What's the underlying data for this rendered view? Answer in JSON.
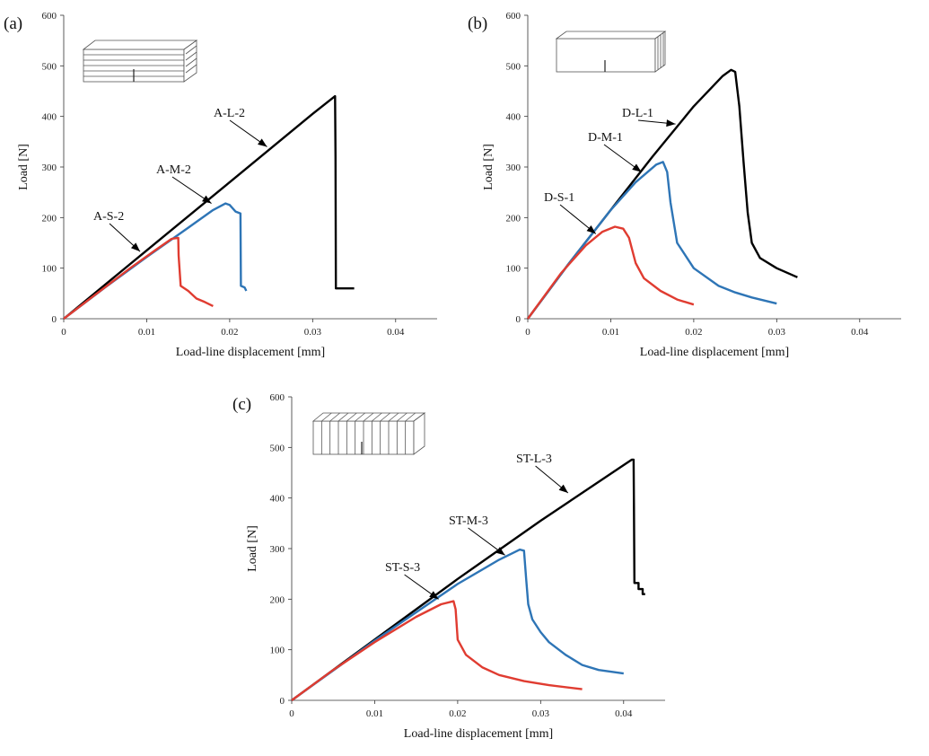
{
  "chart_data": [
    {
      "type": "line",
      "panel_label": "(a)",
      "xlabel": "Load-line displacement [mm]",
      "ylabel": "Load [N]",
      "xlim": [
        0,
        0.045
      ],
      "ylim": [
        0,
        600
      ],
      "xticks": [
        "0",
        "0.01",
        "0.02",
        "0.03",
        "0.04"
      ],
      "yticks": [
        "0",
        "100",
        "200",
        "300",
        "400",
        "500",
        "600"
      ],
      "inset": "specimen-a",
      "series": [
        {
          "name": "A-L-2",
          "color": "#000000",
          "points": [
            [
              0,
              0
            ],
            [
              0.01,
              135
            ],
            [
              0.02,
              270
            ],
            [
              0.03,
              405
            ],
            [
              0.0327,
              440
            ],
            [
              0.03275,
              320
            ],
            [
              0.0328,
              60
            ],
            [
              0.035,
              60
            ]
          ]
        },
        {
          "name": "A-M-2",
          "color": "#2e75b6",
          "points": [
            [
              0,
              0
            ],
            [
              0.005,
              62
            ],
            [
              0.01,
              122
            ],
            [
              0.015,
              180
            ],
            [
              0.018,
              215
            ],
            [
              0.0195,
              228
            ],
            [
              0.02,
              225
            ],
            [
              0.0207,
              212
            ],
            [
              0.0213,
              208
            ],
            [
              0.02135,
              65
            ],
            [
              0.0218,
              62
            ],
            [
              0.022,
              55
            ]
          ]
        },
        {
          "name": "A-S-2",
          "color": "#e03c31",
          "points": [
            [
              0,
              0
            ],
            [
              0.004,
              50
            ],
            [
              0.008,
              100
            ],
            [
              0.011,
              135
            ],
            [
              0.013,
              158
            ],
            [
              0.0138,
              160
            ],
            [
              0.01385,
              125
            ],
            [
              0.0141,
              65
            ],
            [
              0.015,
              55
            ],
            [
              0.016,
              40
            ],
            [
              0.017,
              33
            ],
            [
              0.018,
              25
            ]
          ]
        }
      ],
      "annotations": [
        {
          "text": "A-L-2",
          "target": [
            0.0245,
            340
          ]
        },
        {
          "text": "A-M-2",
          "target": [
            0.0178,
            228
          ]
        },
        {
          "text": "A-S-2",
          "target": [
            0.0092,
            133
          ]
        }
      ]
    },
    {
      "type": "line",
      "panel_label": "(b)",
      "xlabel": "Load-line displacement [mm]",
      "ylabel": "Load [N]",
      "xlim": [
        0,
        0.045
      ],
      "ylim": [
        0,
        600
      ],
      "xticks": [
        "0",
        "0.01",
        "0.02",
        "0.03",
        "0.04"
      ],
      "yticks": [
        "0",
        "100",
        "200",
        "300",
        "400",
        "500",
        "600"
      ],
      "inset": "specimen-b",
      "series": [
        {
          "name": "D-L-1",
          "color": "#000000",
          "points": [
            [
              0,
              0
            ],
            [
              0.005,
              110
            ],
            [
              0.01,
              215
            ],
            [
              0.015,
              320
            ],
            [
              0.02,
              420
            ],
            [
              0.0235,
              480
            ],
            [
              0.0245,
              492
            ],
            [
              0.025,
              488
            ],
            [
              0.0255,
              420
            ],
            [
              0.026,
              310
            ],
            [
              0.0265,
              210
            ],
            [
              0.027,
              150
            ],
            [
              0.028,
              120
            ],
            [
              0.03,
              100
            ],
            [
              0.0325,
              82
            ]
          ]
        },
        {
          "name": "D-M-1",
          "color": "#2e75b6",
          "points": [
            [
              0,
              0
            ],
            [
              0.005,
              110
            ],
            [
              0.01,
              215
            ],
            [
              0.013,
              270
            ],
            [
              0.0155,
              305
            ],
            [
              0.0163,
              310
            ],
            [
              0.0168,
              290
            ],
            [
              0.0172,
              230
            ],
            [
              0.018,
              150
            ],
            [
              0.02,
              100
            ],
            [
              0.023,
              65
            ],
            [
              0.025,
              52
            ],
            [
              0.027,
              42
            ],
            [
              0.03,
              30
            ]
          ]
        },
        {
          "name": "D-S-1",
          "color": "#e03c31",
          "points": [
            [
              0,
              0
            ],
            [
              0.004,
              90
            ],
            [
              0.007,
              145
            ],
            [
              0.009,
              172
            ],
            [
              0.0105,
              182
            ],
            [
              0.0115,
              178
            ],
            [
              0.0122,
              160
            ],
            [
              0.013,
              110
            ],
            [
              0.014,
              80
            ],
            [
              0.016,
              55
            ],
            [
              0.018,
              38
            ],
            [
              0.02,
              28
            ]
          ]
        }
      ],
      "annotations": [
        {
          "text": "D-L-1",
          "target": [
            0.0178,
            385
          ]
        },
        {
          "text": "D-M-1",
          "target": [
            0.0137,
            290
          ]
        },
        {
          "text": "D-S-1",
          "target": [
            0.0082,
            168
          ]
        }
      ]
    },
    {
      "type": "line",
      "panel_label": "(c)",
      "xlabel": "Load-line displacement [mm]",
      "ylabel": "Load [N]",
      "xlim": [
        0,
        0.045
      ],
      "ylim": [
        0,
        600
      ],
      "xticks": [
        "0",
        "0.01",
        "0.02",
        "0.03",
        "0.04"
      ],
      "yticks": [
        "0",
        "100",
        "200",
        "300",
        "400",
        "500",
        "600"
      ],
      "inset": "specimen-c",
      "series": [
        {
          "name": "ST-L-3",
          "color": "#000000",
          "points": [
            [
              0,
              0
            ],
            [
              0.01,
              120
            ],
            [
              0.02,
              240
            ],
            [
              0.03,
              355
            ],
            [
              0.04,
              465
            ],
            [
              0.041,
              476
            ],
            [
              0.0412,
              476
            ],
            [
              0.04125,
              380
            ],
            [
              0.0413,
              232
            ],
            [
              0.0418,
              232
            ],
            [
              0.0418,
              220
            ],
            [
              0.0423,
              220
            ],
            [
              0.0423,
              210
            ],
            [
              0.0426,
              210
            ]
          ]
        },
        {
          "name": "ST-M-3",
          "color": "#2e75b6",
          "points": [
            [
              0,
              0
            ],
            [
              0.01,
              118
            ],
            [
              0.02,
              230
            ],
            [
              0.025,
              278
            ],
            [
              0.0275,
              298
            ],
            [
              0.028,
              296
            ],
            [
              0.02825,
              240
            ],
            [
              0.0285,
              190
            ],
            [
              0.029,
              160
            ],
            [
              0.03,
              135
            ],
            [
              0.031,
              115
            ],
            [
              0.033,
              90
            ],
            [
              0.035,
              70
            ],
            [
              0.037,
              60
            ],
            [
              0.04,
              53
            ]
          ]
        },
        {
          "name": "ST-S-3",
          "color": "#e03c31",
          "points": [
            [
              0,
              0
            ],
            [
              0.005,
              60
            ],
            [
              0.01,
              115
            ],
            [
              0.015,
              165
            ],
            [
              0.018,
              190
            ],
            [
              0.0195,
              196
            ],
            [
              0.01975,
              180
            ],
            [
              0.02,
              120
            ],
            [
              0.021,
              90
            ],
            [
              0.023,
              65
            ],
            [
              0.025,
              50
            ],
            [
              0.028,
              38
            ],
            [
              0.031,
              30
            ],
            [
              0.035,
              22
            ]
          ]
        }
      ],
      "annotations": [
        {
          "text": "ST-L-3",
          "target": [
            0.0333,
            410
          ]
        },
        {
          "text": "ST-M-3",
          "target": [
            0.0257,
            287
          ]
        },
        {
          "text": "ST-S-3",
          "target": [
            0.0177,
            200
          ]
        }
      ]
    }
  ]
}
